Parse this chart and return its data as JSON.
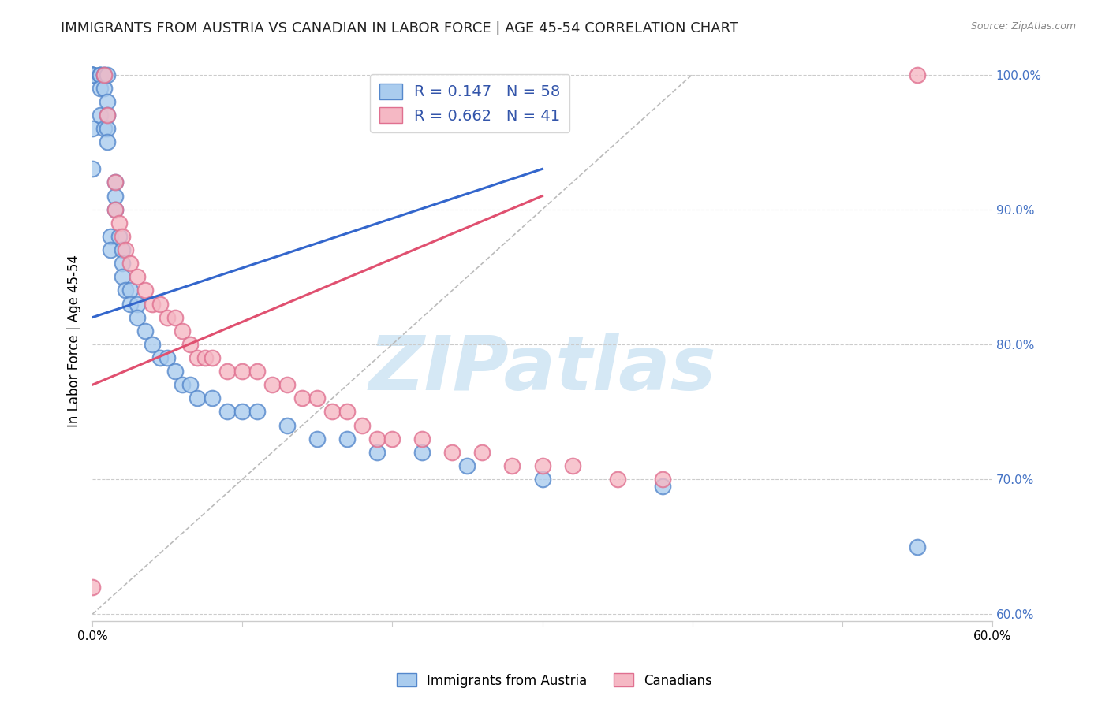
{
  "title": "IMMIGRANTS FROM AUSTRIA VS CANADIAN IN LABOR FORCE | AGE 45-54 CORRELATION CHART",
  "source": "Source: ZipAtlas.com",
  "ylabel": "In Labor Force | Age 45-54",
  "xlim": [
    0.0,
    0.6
  ],
  "ylim": [
    0.595,
    1.01
  ],
  "xtick_positions": [
    0.0,
    0.1,
    0.2,
    0.3,
    0.4,
    0.5,
    0.6
  ],
  "xticklabels": [
    "0.0%",
    "",
    "",
    "",
    "",
    "",
    "60.0%"
  ],
  "ytick_positions": [
    0.6,
    0.7,
    0.8,
    0.9,
    1.0
  ],
  "yticklabels": [
    "60.0%",
    "70.0%",
    "80.0%",
    "90.0%",
    "100.0%"
  ],
  "blue_color_face": "#aaccee",
  "blue_color_edge": "#5588cc",
  "pink_color_face": "#f5b8c4",
  "pink_color_edge": "#e07090",
  "blue_R": "0.147",
  "blue_N": "58",
  "pink_R": "0.662",
  "pink_N": "41",
  "legend_label_color": "#3355aa",
  "right_tick_color": "#4472c4",
  "grid_color": "#cccccc",
  "background_color": "#ffffff",
  "watermark": "ZIPatlas",
  "watermark_color": "#d5e8f5",
  "blue_scatter_x": [
    0.0,
    0.0,
    0.0,
    0.0,
    0.0,
    0.0,
    0.0,
    0.0,
    0.0,
    0.005,
    0.005,
    0.005,
    0.005,
    0.005,
    0.008,
    0.008,
    0.008,
    0.008,
    0.01,
    0.01,
    0.01,
    0.01,
    0.01,
    0.012,
    0.012,
    0.015,
    0.015,
    0.015,
    0.018,
    0.02,
    0.02,
    0.02,
    0.022,
    0.025,
    0.025,
    0.03,
    0.03,
    0.035,
    0.04,
    0.045,
    0.05,
    0.055,
    0.06,
    0.065,
    0.07,
    0.08,
    0.09,
    0.1,
    0.11,
    0.13,
    0.15,
    0.17,
    0.19,
    0.22,
    0.25,
    0.3,
    0.38,
    0.55
  ],
  "blue_scatter_y": [
    1.0,
    1.0,
    1.0,
    1.0,
    1.0,
    1.0,
    1.0,
    0.96,
    0.93,
    1.0,
    1.0,
    1.0,
    0.99,
    0.97,
    1.0,
    1.0,
    0.99,
    0.96,
    1.0,
    0.98,
    0.97,
    0.96,
    0.95,
    0.88,
    0.87,
    0.92,
    0.91,
    0.9,
    0.88,
    0.87,
    0.86,
    0.85,
    0.84,
    0.84,
    0.83,
    0.83,
    0.82,
    0.81,
    0.8,
    0.79,
    0.79,
    0.78,
    0.77,
    0.77,
    0.76,
    0.76,
    0.75,
    0.75,
    0.75,
    0.74,
    0.73,
    0.73,
    0.72,
    0.72,
    0.71,
    0.7,
    0.695,
    0.65
  ],
  "pink_scatter_x": [
    0.0,
    0.008,
    0.01,
    0.015,
    0.015,
    0.018,
    0.02,
    0.022,
    0.025,
    0.03,
    0.035,
    0.04,
    0.045,
    0.05,
    0.055,
    0.06,
    0.065,
    0.07,
    0.075,
    0.08,
    0.09,
    0.1,
    0.11,
    0.12,
    0.13,
    0.14,
    0.15,
    0.16,
    0.17,
    0.18,
    0.19,
    0.2,
    0.22,
    0.24,
    0.26,
    0.28,
    0.3,
    0.32,
    0.35,
    0.38,
    0.55
  ],
  "pink_scatter_y": [
    0.62,
    1.0,
    0.97,
    0.92,
    0.9,
    0.89,
    0.88,
    0.87,
    0.86,
    0.85,
    0.84,
    0.83,
    0.83,
    0.82,
    0.82,
    0.81,
    0.8,
    0.79,
    0.79,
    0.79,
    0.78,
    0.78,
    0.78,
    0.77,
    0.77,
    0.76,
    0.76,
    0.75,
    0.75,
    0.74,
    0.73,
    0.73,
    0.73,
    0.72,
    0.72,
    0.71,
    0.71,
    0.71,
    0.7,
    0.7,
    1.0
  ],
  "blue_trend_x": [
    0.0,
    0.3
  ],
  "blue_trend_y": [
    0.82,
    0.93
  ],
  "pink_trend_x": [
    0.0,
    0.3
  ],
  "pink_trend_y": [
    0.77,
    0.91
  ],
  "ref_line_x": [
    0.0,
    0.4
  ],
  "ref_line_y": [
    0.6,
    1.0
  ],
  "title_fontsize": 13,
  "axis_label_fontsize": 12,
  "tick_fontsize": 11,
  "legend_fontsize": 14
}
